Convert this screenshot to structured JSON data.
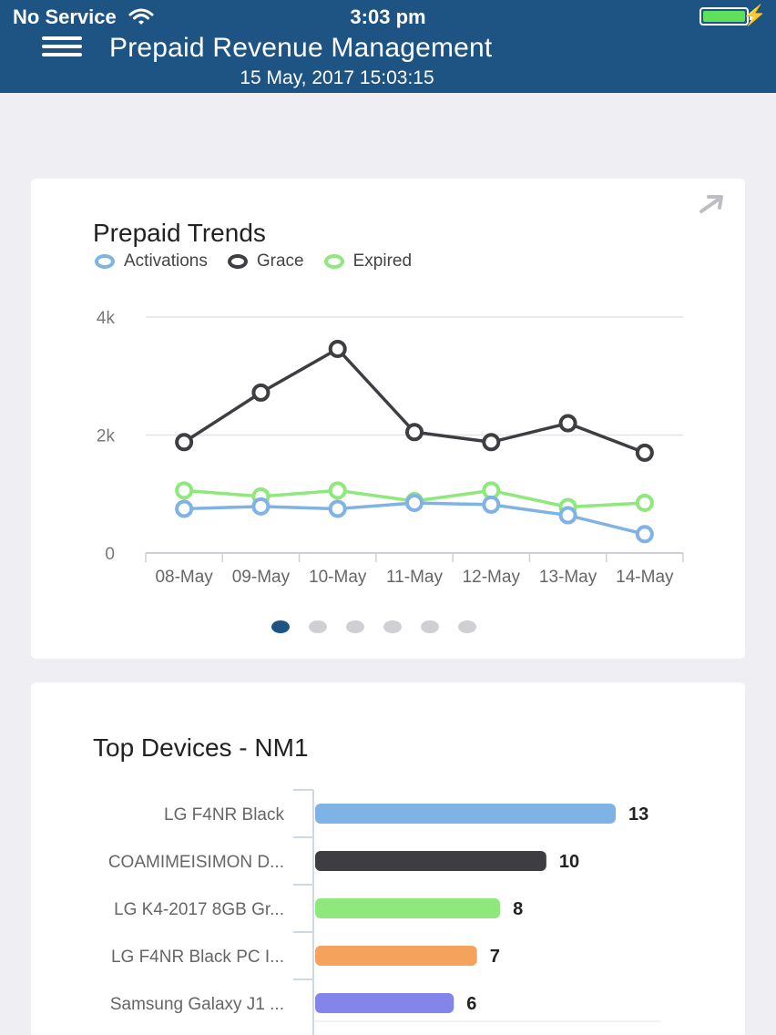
{
  "status_bar": {
    "carrier": "No Service",
    "time": "3:03 pm"
  },
  "header": {
    "title": "Prepaid Revenue Management",
    "datetime": "15 May, 2017 15:03:15"
  },
  "icons": {
    "menu": "hamburger-menu-icon",
    "wifi": "wifi-icon",
    "battery": "battery-icon",
    "charging": "charging-bolt-icon",
    "expand": "expand-arrow-icon"
  },
  "colors": {
    "header": "#1e5483",
    "activations": "#7fb2e5",
    "grace": "#3d3d42",
    "expired": "#8ee87b"
  },
  "trends": {
    "title": "Prepaid Trends",
    "legend": [
      "Activations",
      "Grace",
      "Expired"
    ],
    "pager": {
      "pages": 6,
      "active": 0
    }
  },
  "devices": {
    "title": "Top Devices - NM1"
  },
  "chart_data": [
    {
      "type": "line",
      "title": "Prepaid Trends",
      "categories": [
        "08-May",
        "09-May",
        "10-May",
        "11-May",
        "12-May",
        "13-May",
        "14-May"
      ],
      "y_ticks": [
        "0",
        "2k",
        "4k"
      ],
      "ylim": [
        0,
        4000
      ],
      "grid": true,
      "legend_position": "top-left",
      "series": [
        {
          "name": "Activations",
          "color": "#7fb2e5",
          "values": [
            750,
            790,
            750,
            850,
            820,
            640,
            320
          ]
        },
        {
          "name": "Grace",
          "color": "#3d3d42",
          "values": [
            1880,
            2720,
            3460,
            2050,
            1880,
            2200,
            1700
          ]
        },
        {
          "name": "Expired",
          "color": "#8ee87b",
          "values": [
            1060,
            960,
            1060,
            880,
            1060,
            780,
            850
          ]
        }
      ]
    },
    {
      "type": "bar",
      "title": "Top Devices - NM1",
      "orientation": "horizontal",
      "categories": [
        "LG F4NR Black",
        "COAMIMEISIMON D...",
        "LG K4-2017 8GB Gr...",
        "LG F4NR Black PC I...",
        "Samsung Galaxy J1 ..."
      ],
      "values": [
        13,
        10,
        8,
        7,
        6
      ],
      "colors": [
        "#7fb2e5",
        "#3d3d42",
        "#8ee87b",
        "#f5a25d",
        "#8385e8"
      ]
    }
  ]
}
